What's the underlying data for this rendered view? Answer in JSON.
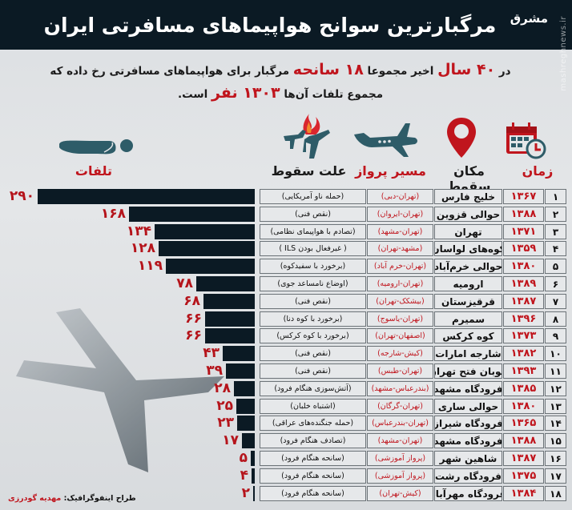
{
  "header": {
    "title": "مرگبارترین سوانح هواپیماهای مسافرتی ایران",
    "brand": "مشرق",
    "watermark": "mashreghnews.ir"
  },
  "intro": {
    "line1_a": "در",
    "line1_years": "۴۰ سال",
    "line1_b": "اخیر مجموعا",
    "line1_count": "۱۸ سانحه",
    "line1_c": "مرگبار برای هواپیماهای مسافرتی رخ داده که",
    "line2_a": "مجموع تلفات آن‌ها",
    "line2_total": "۱۳۰۳ نفر",
    "line2_b": "است."
  },
  "columns": {
    "time": "زمان",
    "place": "مکان سقوط",
    "route": "مسیر پرواز",
    "cause": "علت سقوط",
    "casualties": "تلفات"
  },
  "icons": {
    "time": "calendar-clock-icon",
    "place": "map-pin-icon",
    "route": "airplane-icon",
    "cause": "burning-plane-icon",
    "casualties": "lying-body-icon"
  },
  "colors": {
    "accent_red": "#c0151d",
    "dark_navy": "#0b1a24",
    "teal_icon": "#2e5c68",
    "cell_bg": "#e6e8ea"
  },
  "rows": [
    {
      "num": "۱",
      "year": "۱۳۶۷",
      "place": "خلیج فارس",
      "route": "(تهران-دبی)",
      "reason": "(حمله ناو آمریکایی)",
      "deaths": "۲۹۰",
      "value": 290
    },
    {
      "num": "۲",
      "year": "۱۳۸۸",
      "place": "حوالی قزوین",
      "route": "(تهران-ایروان)",
      "reason": "(نقص فنی)",
      "deaths": "۱۶۸",
      "value": 168
    },
    {
      "num": "۳",
      "year": "۱۳۷۱",
      "place": "تهران",
      "route": "(تهران-مشهد)",
      "reason": "(تصادم با هواپیمای نظامی)",
      "deaths": "۱۳۴",
      "value": 134
    },
    {
      "num": "۴",
      "year": "۱۳۵۹",
      "place": "کوه‌های لواسان",
      "route": "(مشهد-تهران)",
      "reason": "( غیرفعال بودن ILS )",
      "deaths": "۱۲۸",
      "value": 128
    },
    {
      "num": "۵",
      "year": "۱۳۸۰",
      "place": "حوالی خرم‌آباد",
      "route": "(تهران-خرم آباد)",
      "reason": "(برخورد با سفیدکوه)",
      "deaths": "۱۱۹",
      "value": 119
    },
    {
      "num": "۶",
      "year": "۱۳۸۹",
      "place": "ارومیه",
      "route": "(تهران-ارومیه)",
      "reason": "(اوضاع نامساعد جوی)",
      "deaths": "۷۸",
      "value": 78
    },
    {
      "num": "۷",
      "year": "۱۳۸۷",
      "place": "قرقیزستان",
      "route": "(بیشکک-تهران)",
      "reason": "(نقص فنی)",
      "deaths": "۶۸",
      "value": 68
    },
    {
      "num": "۸",
      "year": "۱۳۹۶",
      "place": "سمیرم",
      "route": "(تهران-یاسوج)",
      "reason": "(برخورد با کوه دنا)",
      "deaths": "۶۶",
      "value": 66
    },
    {
      "num": "۹",
      "year": "۱۳۷۳",
      "place": "کوه کرکس",
      "route": "(اصفهان-تهران)",
      "reason": "(برخورد با کوه کرکس)",
      "deaths": "۶۶",
      "value": 66
    },
    {
      "num": "۱۰",
      "year": "۱۳۸۲",
      "place": "شارجه امارات",
      "route": "(کیش-شارجه)",
      "reason": "(نقص فنی)",
      "deaths": "۴۳",
      "value": 43
    },
    {
      "num": "۱۱",
      "year": "۱۳۹۳",
      "place": "اتوبان فتح تهران",
      "route": "(تهران-طبس)",
      "reason": "(نقص فنی)",
      "deaths": "۳۹",
      "value": 39
    },
    {
      "num": "۱۲",
      "year": "۱۳۸۵",
      "place": "فرودگاه مشهد",
      "route": "(بندرعباس-مشهد)",
      "reason": "(آتش‌سوزی هنگام فرود)",
      "deaths": "۲۸",
      "value": 28
    },
    {
      "num": "۱۳",
      "year": "۱۳۸۰",
      "place": "حوالی ساری",
      "route": "(تهران-گرگان)",
      "reason": "(اشتباه خلبان)",
      "deaths": "۲۵",
      "value": 25
    },
    {
      "num": "۱۴",
      "year": "۱۳۶۵",
      "place": "فرودگاه شیراز",
      "route": "(تهران-بندرعباس)",
      "reason": "(حمله جنگنده‌های عراقی)",
      "deaths": "۲۳",
      "value": 23
    },
    {
      "num": "۱۵",
      "year": "۱۳۸۸",
      "place": "فرودگاه مشهد",
      "route": "(تهران-مشهد)",
      "reason": "(تصادف هنگام فرود)",
      "deaths": "۱۷",
      "value": 17
    },
    {
      "num": "۱۶",
      "year": "۱۳۸۷",
      "place": "شاهین شهر",
      "route": "(پرواز آموزشی)",
      "reason": "(سانحه هنگام فرود)",
      "deaths": "۵",
      "value": 5
    },
    {
      "num": "۱۷",
      "year": "۱۳۷۵",
      "place": "فرودگاه رشت",
      "route": "(پرواز آموزشی)",
      "reason": "(سانحه هنگام فرود)",
      "deaths": "۴",
      "value": 4
    },
    {
      "num": "۱۸",
      "year": "۱۳۸۴",
      "place": "فرودگاه مهرآباد",
      "route": "(کیش-تهران)",
      "reason": "(سانحه هنگام فرود)",
      "deaths": "۲",
      "value": 2
    }
  ],
  "credit": {
    "label": "طراح اینفوگرافیک:",
    "name": "مهدیه گودرزی"
  },
  "chart_data": {
    "type": "bar",
    "orientation": "horizontal",
    "title": "مرگبارترین سوانح هواپیماهای مسافرتی ایران",
    "xlabel": "تلفات",
    "ylabel": "",
    "categories": [
      "خلیج فارس ۱۳۶۷",
      "حوالی قزوین ۱۳۸۸",
      "تهران ۱۳۷۱",
      "کوه‌های لواسان ۱۳۵۹",
      "حوالی خرم‌آباد ۱۳۸۰",
      "ارومیه ۱۳۸۹",
      "قرقیزستان ۱۳۸۷",
      "سمیرم ۱۳۹۶",
      "کوه کرکس ۱۳۷۳",
      "شارجه امارات ۱۳۸۲",
      "اتوبان فتح تهران ۱۳۹۳",
      "فرودگاه مشهد ۱۳۸۵",
      "حوالی ساری ۱۳۸۰",
      "فرودگاه شیراز ۱۳۶۵",
      "فرودگاه مشهد ۱۳۸۸",
      "شاهین شهر ۱۳۸۷",
      "فرودگاه رشت ۱۳۷۵",
      "فرودگاه مهرآباد ۱۳۸۴"
    ],
    "values": [
      290,
      168,
      134,
      128,
      119,
      78,
      68,
      66,
      66,
      43,
      39,
      28,
      25,
      23,
      17,
      5,
      4,
      2
    ],
    "total": 1303,
    "count": 18,
    "years_span": 40,
    "xlim": [
      0,
      290
    ],
    "grid": false,
    "legend": "none"
  }
}
